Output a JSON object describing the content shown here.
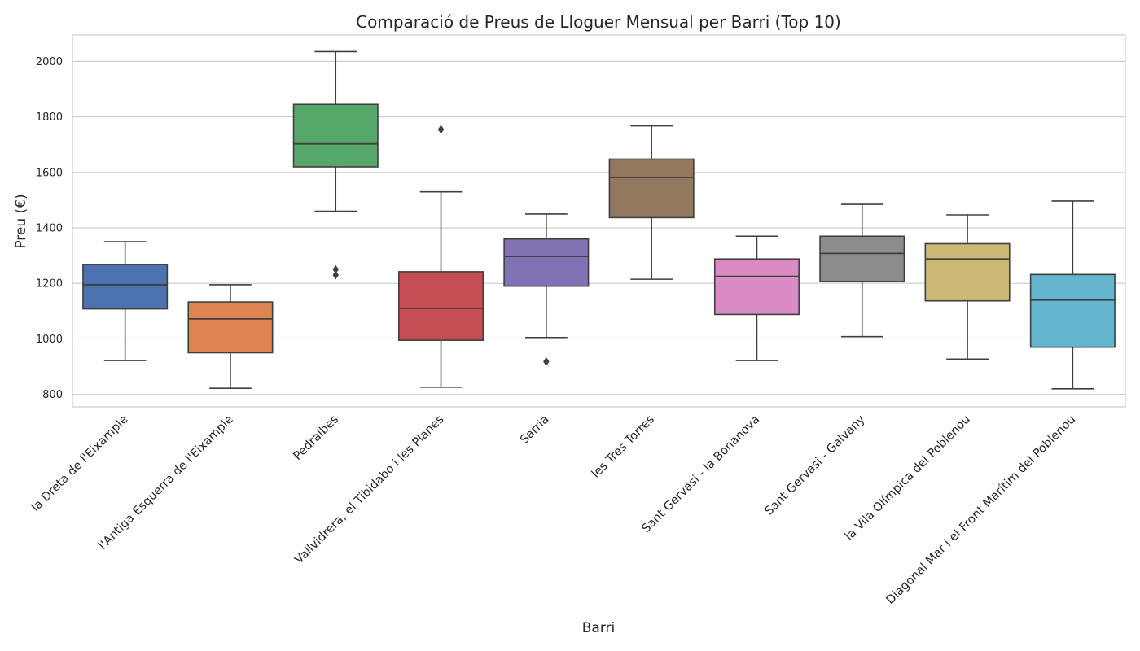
{
  "chart_data": {
    "type": "box",
    "title": "Comparació de Preus de Lloguer Mensual per Barri (Top 10)",
    "xlabel": "Barri",
    "ylabel": "Preu (€)",
    "ylim": [
      755,
      2095
    ],
    "yticks": [
      800,
      1000,
      1200,
      1400,
      1600,
      1800,
      2000
    ],
    "grid": true,
    "categories": [
      "la Dreta de l'Eixample",
      "l'Antiga Esquerra de l'Eixample",
      "Pedralbes",
      "Vallvidrera, el Tibidabo i les Planes",
      "Sarrià",
      "les Tres Torres",
      "Sant Gervasi - la Bonanova",
      "Sant Gervasi - Galvany",
      "la Vila Olímpica del Poblenou",
      "Diagonal Mar i el Front Marítim del Poblenou"
    ],
    "colors": [
      "#4c72b0",
      "#dd8452",
      "#55a868",
      "#c44e52",
      "#8172b3",
      "#937860",
      "#da8bc3",
      "#8c8c8c",
      "#ccb974",
      "#64b5cd"
    ],
    "boxes": [
      {
        "whislo": 922,
        "q1": 1108,
        "med": 1195,
        "q3": 1268,
        "whishi": 1350,
        "fliers": []
      },
      {
        "whislo": 822,
        "q1": 950,
        "med": 1072,
        "q3": 1133,
        "whishi": 1195,
        "fliers": []
      },
      {
        "whislo": 1460,
        "q1": 1620,
        "med": 1703,
        "q3": 1845,
        "whishi": 2035,
        "fliers": [
          1250,
          1230
        ]
      },
      {
        "whislo": 826,
        "q1": 995,
        "med": 1110,
        "q3": 1242,
        "whishi": 1530,
        "fliers": [
          1755
        ]
      },
      {
        "whislo": 1005,
        "q1": 1190,
        "med": 1297,
        "q3": 1360,
        "whishi": 1450,
        "fliers": [
          918
        ]
      },
      {
        "whislo": 1215,
        "q1": 1437,
        "med": 1582,
        "q3": 1648,
        "whishi": 1768,
        "fliers": []
      },
      {
        "whislo": 922,
        "q1": 1088,
        "med": 1225,
        "q3": 1288,
        "whishi": 1370,
        "fliers": []
      },
      {
        "whislo": 1008,
        "q1": 1207,
        "med": 1308,
        "q3": 1370,
        "whishi": 1485,
        "fliers": []
      },
      {
        "whislo": 927,
        "q1": 1137,
        "med": 1288,
        "q3": 1343,
        "whishi": 1447,
        "fliers": []
      },
      {
        "whislo": 820,
        "q1": 970,
        "med": 1140,
        "q3": 1232,
        "whishi": 1497,
        "fliers": []
      }
    ]
  }
}
